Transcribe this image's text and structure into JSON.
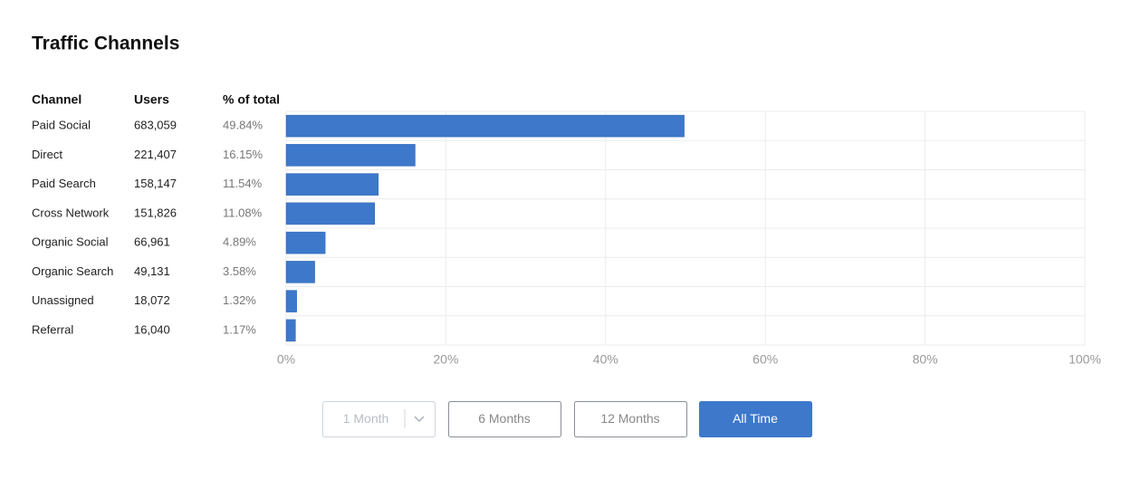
{
  "title": "Traffic Channels",
  "table": {
    "columns": [
      "Channel",
      "Users",
      "% of total"
    ],
    "users": [
      "683,059",
      "221,407",
      "158,147",
      "151,826",
      "66,961",
      "49,131",
      "18,072",
      "16,040"
    ]
  },
  "chart_data": {
    "type": "bar",
    "orientation": "horizontal",
    "categories": [
      "Paid Social",
      "Direct",
      "Paid Search",
      "Cross Network",
      "Organic Social",
      "Organic Search",
      "Unassigned",
      "Referral"
    ],
    "values": [
      49.84,
      16.15,
      11.54,
      11.08,
      4.89,
      3.58,
      1.32,
      1.17
    ],
    "value_labels": [
      "49.84%",
      "16.15%",
      "11.54%",
      "11.08%",
      "4.89%",
      "3.58%",
      "1.32%",
      "1.17%"
    ],
    "color": "#3d78cb",
    "xlim": [
      0,
      100
    ],
    "xticks": [
      {
        "value": 0,
        "label": "0%"
      },
      {
        "value": 20,
        "label": "20%"
      },
      {
        "value": 40,
        "label": "40%"
      },
      {
        "value": 60,
        "label": "60%"
      },
      {
        "value": 80,
        "label": "80%"
      },
      {
        "value": 100,
        "label": "100%"
      }
    ],
    "grid": true
  },
  "controls": {
    "buttons": [
      "1 Month",
      "6 Months",
      "12 Months",
      "All Time"
    ],
    "active": 3,
    "disabled": 0
  }
}
